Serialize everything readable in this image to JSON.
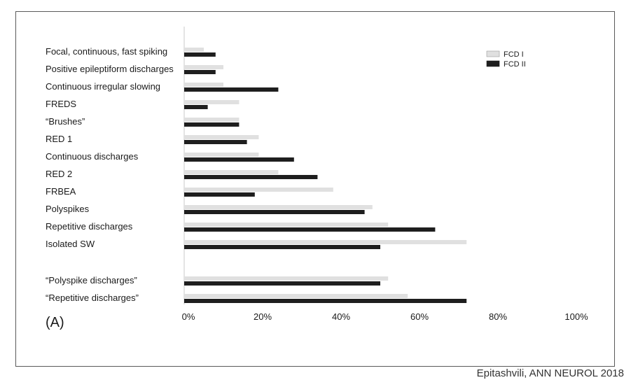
{
  "panel_label": "(A)",
  "citation": "Epitashvili, ANN NEUROL 2018",
  "colors": {
    "fcd1": "#e0e0e0",
    "fcd2": "#1e1e1e",
    "border": "#5a5a5a"
  },
  "chart_data": {
    "type": "bar",
    "orientation": "horizontal",
    "title": "",
    "xlabel": "",
    "ylabel": "",
    "xlim": [
      0,
      100
    ],
    "x_unit": "%",
    "ticks": [
      "0%",
      "20%",
      "40%",
      "60%",
      "80%",
      "100%"
    ],
    "tick_values": [
      0,
      20,
      40,
      60,
      80,
      100
    ],
    "grid": false,
    "legend_position": "top-right",
    "categories": [
      "Focal, continuous, fast spiking",
      "Positive epileptiform discharges",
      "Continuous irregular slowing",
      "FREDS",
      "“Brushes”",
      "RED 1",
      "Continuous discharges",
      "RED 2",
      "FRBEA",
      "Polyspikes",
      "Repetitive discharges",
      "Isolated SW",
      "“Polyspike discharges”",
      "“Repetitive discharges”"
    ],
    "group_gap_after_index": 11,
    "series": [
      {
        "name": "FCD I",
        "color": "#e0e0e0",
        "values": [
          5,
          10,
          10,
          14,
          14,
          19,
          19,
          24,
          38,
          48,
          52,
          72,
          52,
          57
        ]
      },
      {
        "name": "FCD II",
        "color": "#1e1e1e",
        "values": [
          8,
          8,
          24,
          6,
          14,
          16,
          28,
          34,
          18,
          46,
          64,
          50,
          50,
          72
        ]
      }
    ]
  }
}
